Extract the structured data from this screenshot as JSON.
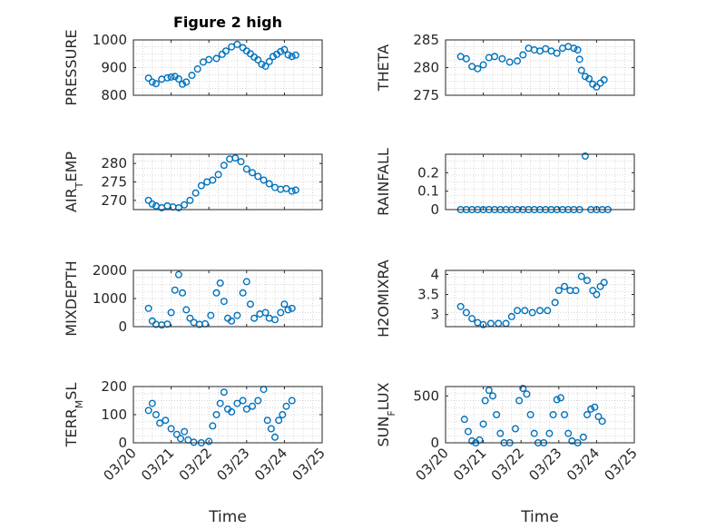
{
  "figure": {
    "title": "Figure 2 high",
    "xlabel": "Time"
  },
  "chart_data": [
    {
      "type": "scatter",
      "ylabel_html": "PRESSURE",
      "ylim": [
        800,
        1000
      ],
      "yticks": [
        800,
        900,
        1000
      ],
      "xlim": [
        "03/20",
        "03/25"
      ],
      "xticks": [
        "03/20",
        "03/21",
        "03/22",
        "03/23",
        "03/24",
        "03/25"
      ],
      "xtick_labels_visible": false,
      "grid": "on",
      "color": "#0072BD",
      "points": [
        [
          20.4,
          862
        ],
        [
          20.5,
          848
        ],
        [
          20.6,
          842
        ],
        [
          20.75,
          858
        ],
        [
          20.9,
          863
        ],
        [
          21.0,
          866
        ],
        [
          21.1,
          868
        ],
        [
          21.2,
          859
        ],
        [
          21.3,
          840
        ],
        [
          21.4,
          848
        ],
        [
          21.55,
          872
        ],
        [
          21.7,
          895
        ],
        [
          21.85,
          920
        ],
        [
          22.0,
          929
        ],
        [
          22.2,
          933
        ],
        [
          22.35,
          948
        ],
        [
          22.45,
          960
        ],
        [
          22.6,
          975
        ],
        [
          22.75,
          984
        ],
        [
          22.9,
          972
        ],
        [
          23.0,
          960
        ],
        [
          23.1,
          950
        ],
        [
          23.2,
          938
        ],
        [
          23.3,
          928
        ],
        [
          23.4,
          912
        ],
        [
          23.5,
          905
        ],
        [
          23.6,
          922
        ],
        [
          23.7,
          940
        ],
        [
          23.8,
          948
        ],
        [
          23.9,
          958
        ],
        [
          24.0,
          965
        ],
        [
          24.1,
          946
        ],
        [
          24.2,
          940
        ],
        [
          24.3,
          945
        ]
      ]
    },
    {
      "type": "scatter",
      "ylabel_html": "THETA",
      "ylim": [
        275,
        285
      ],
      "yticks": [
        275,
        280,
        285
      ],
      "xlim": [
        "03/20",
        "03/25"
      ],
      "xticks": [
        "03/20",
        "03/21",
        "03/22",
        "03/23",
        "03/24",
        "03/25"
      ],
      "xtick_labels_visible": false,
      "grid": "on",
      "color": "#0072BD",
      "points": [
        [
          20.4,
          282.0
        ],
        [
          20.55,
          281.6
        ],
        [
          20.7,
          280.2
        ],
        [
          20.85,
          279.8
        ],
        [
          21.0,
          280.5
        ],
        [
          21.15,
          281.8
        ],
        [
          21.3,
          282.0
        ],
        [
          21.5,
          281.6
        ],
        [
          21.7,
          281.0
        ],
        [
          21.9,
          281.2
        ],
        [
          22.05,
          282.3
        ],
        [
          22.2,
          283.5
        ],
        [
          22.35,
          283.2
        ],
        [
          22.5,
          283.0
        ],
        [
          22.65,
          283.4
        ],
        [
          22.8,
          283.0
        ],
        [
          22.95,
          282.6
        ],
        [
          23.1,
          283.5
        ],
        [
          23.25,
          283.8
        ],
        [
          23.4,
          283.5
        ],
        [
          23.5,
          283.2
        ],
        [
          23.55,
          281.5
        ],
        [
          23.6,
          279.5
        ],
        [
          23.7,
          278.4
        ],
        [
          23.8,
          278.0
        ],
        [
          23.9,
          277.0
        ],
        [
          24.0,
          276.5
        ],
        [
          24.1,
          277.2
        ],
        [
          24.2,
          277.8
        ]
      ]
    },
    {
      "type": "scatter",
      "ylabel_html": "AIR<tspan baseline-shift=\"sub\" font-size=\"11\">T</tspan>EMP",
      "ylim": [
        267.5,
        282.5
      ],
      "yticks": [
        270,
        275,
        280
      ],
      "xlim": [
        "03/20",
        "03/25"
      ],
      "xticks": [
        "03/20",
        "03/21",
        "03/22",
        "03/23",
        "03/24",
        "03/25"
      ],
      "xtick_labels_visible": false,
      "grid": "on",
      "color": "#0072BD",
      "points": [
        [
          20.4,
          270.0
        ],
        [
          20.5,
          269.0
        ],
        [
          20.6,
          268.5
        ],
        [
          20.75,
          268.0
        ],
        [
          20.9,
          268.5
        ],
        [
          21.05,
          268.2
        ],
        [
          21.2,
          268.0
        ],
        [
          21.35,
          268.8
        ],
        [
          21.5,
          270.0
        ],
        [
          21.65,
          272.0
        ],
        [
          21.8,
          274.0
        ],
        [
          21.95,
          275.0
        ],
        [
          22.1,
          275.5
        ],
        [
          22.25,
          277.0
        ],
        [
          22.4,
          279.5
        ],
        [
          22.55,
          281.2
        ],
        [
          22.7,
          281.5
        ],
        [
          22.85,
          280.5
        ],
        [
          23.0,
          278.5
        ],
        [
          23.15,
          277.5
        ],
        [
          23.3,
          276.5
        ],
        [
          23.45,
          275.5
        ],
        [
          23.6,
          274.5
        ],
        [
          23.75,
          273.5
        ],
        [
          23.9,
          273.0
        ],
        [
          24.05,
          273.2
        ],
        [
          24.2,
          272.5
        ],
        [
          24.3,
          272.8
        ]
      ]
    },
    {
      "type": "scatter",
      "ylabel_html": "RAINFALL",
      "ylim": [
        0,
        0.3
      ],
      "yticks": [
        0,
        0.1,
        0.2
      ],
      "xlim": [
        "03/20",
        "03/25"
      ],
      "xticks": [
        "03/20",
        "03/21",
        "03/22",
        "03/23",
        "03/24",
        "03/25"
      ],
      "xtick_labels_visible": false,
      "grid": "on",
      "color": "#0072BD",
      "points": [
        [
          20.4,
          0
        ],
        [
          20.55,
          0
        ],
        [
          20.7,
          0
        ],
        [
          20.85,
          0
        ],
        [
          21.0,
          0
        ],
        [
          21.15,
          0
        ],
        [
          21.3,
          0
        ],
        [
          21.45,
          0
        ],
        [
          21.6,
          0
        ],
        [
          21.75,
          0
        ],
        [
          21.9,
          0
        ],
        [
          22.05,
          0
        ],
        [
          22.2,
          0
        ],
        [
          22.35,
          0
        ],
        [
          22.5,
          0
        ],
        [
          22.65,
          0
        ],
        [
          22.8,
          0
        ],
        [
          22.95,
          0
        ],
        [
          23.1,
          0
        ],
        [
          23.25,
          0
        ],
        [
          23.4,
          0
        ],
        [
          23.55,
          0
        ],
        [
          23.7,
          0.29
        ],
        [
          23.85,
          0
        ],
        [
          24.0,
          0
        ],
        [
          24.15,
          0
        ],
        [
          24.3,
          0
        ]
      ]
    },
    {
      "type": "scatter",
      "ylabel_html": "MIXDEPTH",
      "ylim": [
        0,
        2000
      ],
      "yticks": [
        0,
        1000,
        2000
      ],
      "xlim": [
        "03/20",
        "03/25"
      ],
      "xticks": [
        "03/20",
        "03/21",
        "03/22",
        "03/23",
        "03/24",
        "03/25"
      ],
      "xtick_labels_visible": false,
      "grid": "on",
      "color": "#0072BD",
      "points": [
        [
          20.4,
          650
        ],
        [
          20.5,
          200
        ],
        [
          20.6,
          80
        ],
        [
          20.75,
          60
        ],
        [
          20.9,
          90
        ],
        [
          21.0,
          500
        ],
        [
          21.1,
          1300
        ],
        [
          21.2,
          1850
        ],
        [
          21.3,
          1200
        ],
        [
          21.4,
          600
        ],
        [
          21.5,
          300
        ],
        [
          21.6,
          150
        ],
        [
          21.75,
          80
        ],
        [
          21.9,
          100
        ],
        [
          22.05,
          400
        ],
        [
          22.2,
          1200
        ],
        [
          22.3,
          1550
        ],
        [
          22.4,
          900
        ],
        [
          22.5,
          300
        ],
        [
          22.6,
          200
        ],
        [
          22.75,
          400
        ],
        [
          22.9,
          1200
        ],
        [
          23.0,
          1600
        ],
        [
          23.1,
          800
        ],
        [
          23.2,
          300
        ],
        [
          23.35,
          450
        ],
        [
          23.5,
          500
        ],
        [
          23.6,
          300
        ],
        [
          23.75,
          250
        ],
        [
          23.9,
          500
        ],
        [
          24.0,
          800
        ],
        [
          24.1,
          600
        ],
        [
          24.2,
          650
        ]
      ]
    },
    {
      "type": "scatter",
      "ylabel_html": "H2OMIXRA",
      "ylim": [
        2.7,
        4.1
      ],
      "yticks": [
        3,
        3.5,
        4
      ],
      "xlim": [
        "03/20",
        "03/25"
      ],
      "xticks": [
        "03/20",
        "03/21",
        "03/22",
        "03/23",
        "03/24",
        "03/25"
      ],
      "xtick_labels_visible": false,
      "grid": "on",
      "color": "#0072BD",
      "points": [
        [
          20.4,
          3.2
        ],
        [
          20.55,
          3.05
        ],
        [
          20.7,
          2.9
        ],
        [
          20.85,
          2.8
        ],
        [
          21.0,
          2.75
        ],
        [
          21.2,
          2.78
        ],
        [
          21.4,
          2.78
        ],
        [
          21.6,
          2.78
        ],
        [
          21.75,
          2.95
        ],
        [
          21.9,
          3.1
        ],
        [
          22.1,
          3.1
        ],
        [
          22.3,
          3.05
        ],
        [
          22.5,
          3.1
        ],
        [
          22.7,
          3.1
        ],
        [
          22.9,
          3.3
        ],
        [
          23.0,
          3.6
        ],
        [
          23.15,
          3.7
        ],
        [
          23.3,
          3.6
        ],
        [
          23.45,
          3.6
        ],
        [
          23.6,
          3.95
        ],
        [
          23.75,
          3.85
        ],
        [
          23.9,
          3.6
        ],
        [
          24.0,
          3.5
        ],
        [
          24.1,
          3.7
        ],
        [
          24.2,
          3.8
        ]
      ]
    },
    {
      "type": "scatter",
      "ylabel_html": "TERR<tspan baseline-shift=\"sub\" font-size=\"11\">M</tspan>SL",
      "ylim": [
        0,
        200
      ],
      "yticks": [
        0,
        100,
        200
      ],
      "xlim": [
        "03/20",
        "03/25"
      ],
      "xticks": [
        "03/20",
        "03/21",
        "03/22",
        "03/23",
        "03/24",
        "03/25"
      ],
      "xtick_labels_visible": true,
      "grid": "on",
      "color": "#0072BD",
      "points": [
        [
          20.4,
          115
        ],
        [
          20.5,
          140
        ],
        [
          20.6,
          100
        ],
        [
          20.7,
          70
        ],
        [
          20.85,
          80
        ],
        [
          21.0,
          50
        ],
        [
          21.15,
          30
        ],
        [
          21.25,
          15
        ],
        [
          21.35,
          40
        ],
        [
          21.45,
          10
        ],
        [
          21.6,
          2
        ],
        [
          21.8,
          0
        ],
        [
          22.0,
          5
        ],
        [
          22.1,
          60
        ],
        [
          22.2,
          100
        ],
        [
          22.3,
          140
        ],
        [
          22.4,
          180
        ],
        [
          22.5,
          120
        ],
        [
          22.6,
          110
        ],
        [
          22.75,
          140
        ],
        [
          22.9,
          150
        ],
        [
          23.0,
          120
        ],
        [
          23.15,
          130
        ],
        [
          23.3,
          150
        ],
        [
          23.45,
          190
        ],
        [
          23.55,
          80
        ],
        [
          23.65,
          50
        ],
        [
          23.75,
          20
        ],
        [
          23.85,
          80
        ],
        [
          23.95,
          100
        ],
        [
          24.05,
          130
        ],
        [
          24.2,
          150
        ]
      ]
    },
    {
      "type": "scatter",
      "ylabel_html": "SUN<tspan baseline-shift=\"sub\" font-size=\"11\">F</tspan>LUX",
      "ylim": [
        0,
        600
      ],
      "yticks": [
        0,
        500
      ],
      "xlim": [
        "03/20",
        "03/25"
      ],
      "xticks": [
        "03/20",
        "03/21",
        "03/22",
        "03/23",
        "03/24",
        "03/25"
      ],
      "xtick_labels_visible": true,
      "grid": "on",
      "color": "#0072BD",
      "points": [
        [
          20.5,
          250
        ],
        [
          20.6,
          120
        ],
        [
          20.7,
          20
        ],
        [
          20.8,
          0
        ],
        [
          20.9,
          30
        ],
        [
          21.0,
          200
        ],
        [
          21.05,
          450
        ],
        [
          21.15,
          560
        ],
        [
          21.25,
          500
        ],
        [
          21.35,
          300
        ],
        [
          21.45,
          100
        ],
        [
          21.55,
          0
        ],
        [
          21.7,
          0
        ],
        [
          21.85,
          150
        ],
        [
          21.95,
          450
        ],
        [
          22.05,
          580
        ],
        [
          22.15,
          520
        ],
        [
          22.25,
          300
        ],
        [
          22.35,
          100
        ],
        [
          22.45,
          0
        ],
        [
          22.6,
          0
        ],
        [
          22.75,
          100
        ],
        [
          22.85,
          300
        ],
        [
          22.95,
          460
        ],
        [
          23.05,
          480
        ],
        [
          23.15,
          300
        ],
        [
          23.25,
          100
        ],
        [
          23.35,
          20
        ],
        [
          23.5,
          0
        ],
        [
          23.65,
          60
        ],
        [
          23.75,
          300
        ],
        [
          23.85,
          360
        ],
        [
          23.95,
          380
        ],
        [
          24.05,
          280
        ],
        [
          24.15,
          230
        ]
      ]
    }
  ]
}
